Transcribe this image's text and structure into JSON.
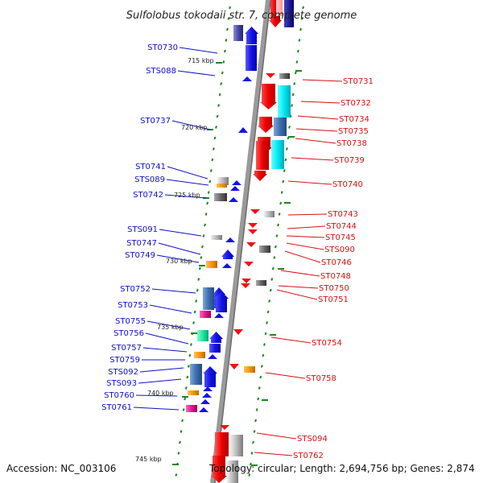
{
  "title": "Sulfolobus tokodaii str. 7, complete genome",
  "accession": "Accession: NC_003106",
  "topology": "Topology: circular; Length: 2,694,756 bp; Genes: 2,874",
  "colors": {
    "forward": "#1a1ae6",
    "reverse": "#ee1111",
    "left_label": "#1010c8",
    "right_label": "#d81010",
    "backbone": "#9a9a9a",
    "tick": "#1a8a1a"
  },
  "kbp_labels": [
    "715 kbp",
    "720 kbp",
    "725 kbp",
    "730 kbp",
    "735 kbp",
    "740 kbp",
    "745 kbp"
  ],
  "left_labels": [
    "ST0730",
    "STS088",
    "ST0737",
    "ST0741",
    "STS089",
    "ST0742",
    "STS091",
    "ST0747",
    "ST0749",
    "ST0752",
    "ST0753",
    "ST0755",
    "ST0756",
    "ST0757",
    "ST0759",
    "STS092",
    "STS093",
    "ST0760",
    "ST0761"
  ],
  "right_labels": [
    "ST0731",
    "ST0732",
    "ST0734",
    "ST0735",
    "ST0738",
    "ST0739",
    "ST0740",
    "ST0743",
    "ST0744",
    "ST0745",
    "STS090",
    "ST0746",
    "ST0748",
    "ST0750",
    "ST0751",
    "ST0754",
    "ST0758",
    "STS094",
    "ST0762"
  ]
}
